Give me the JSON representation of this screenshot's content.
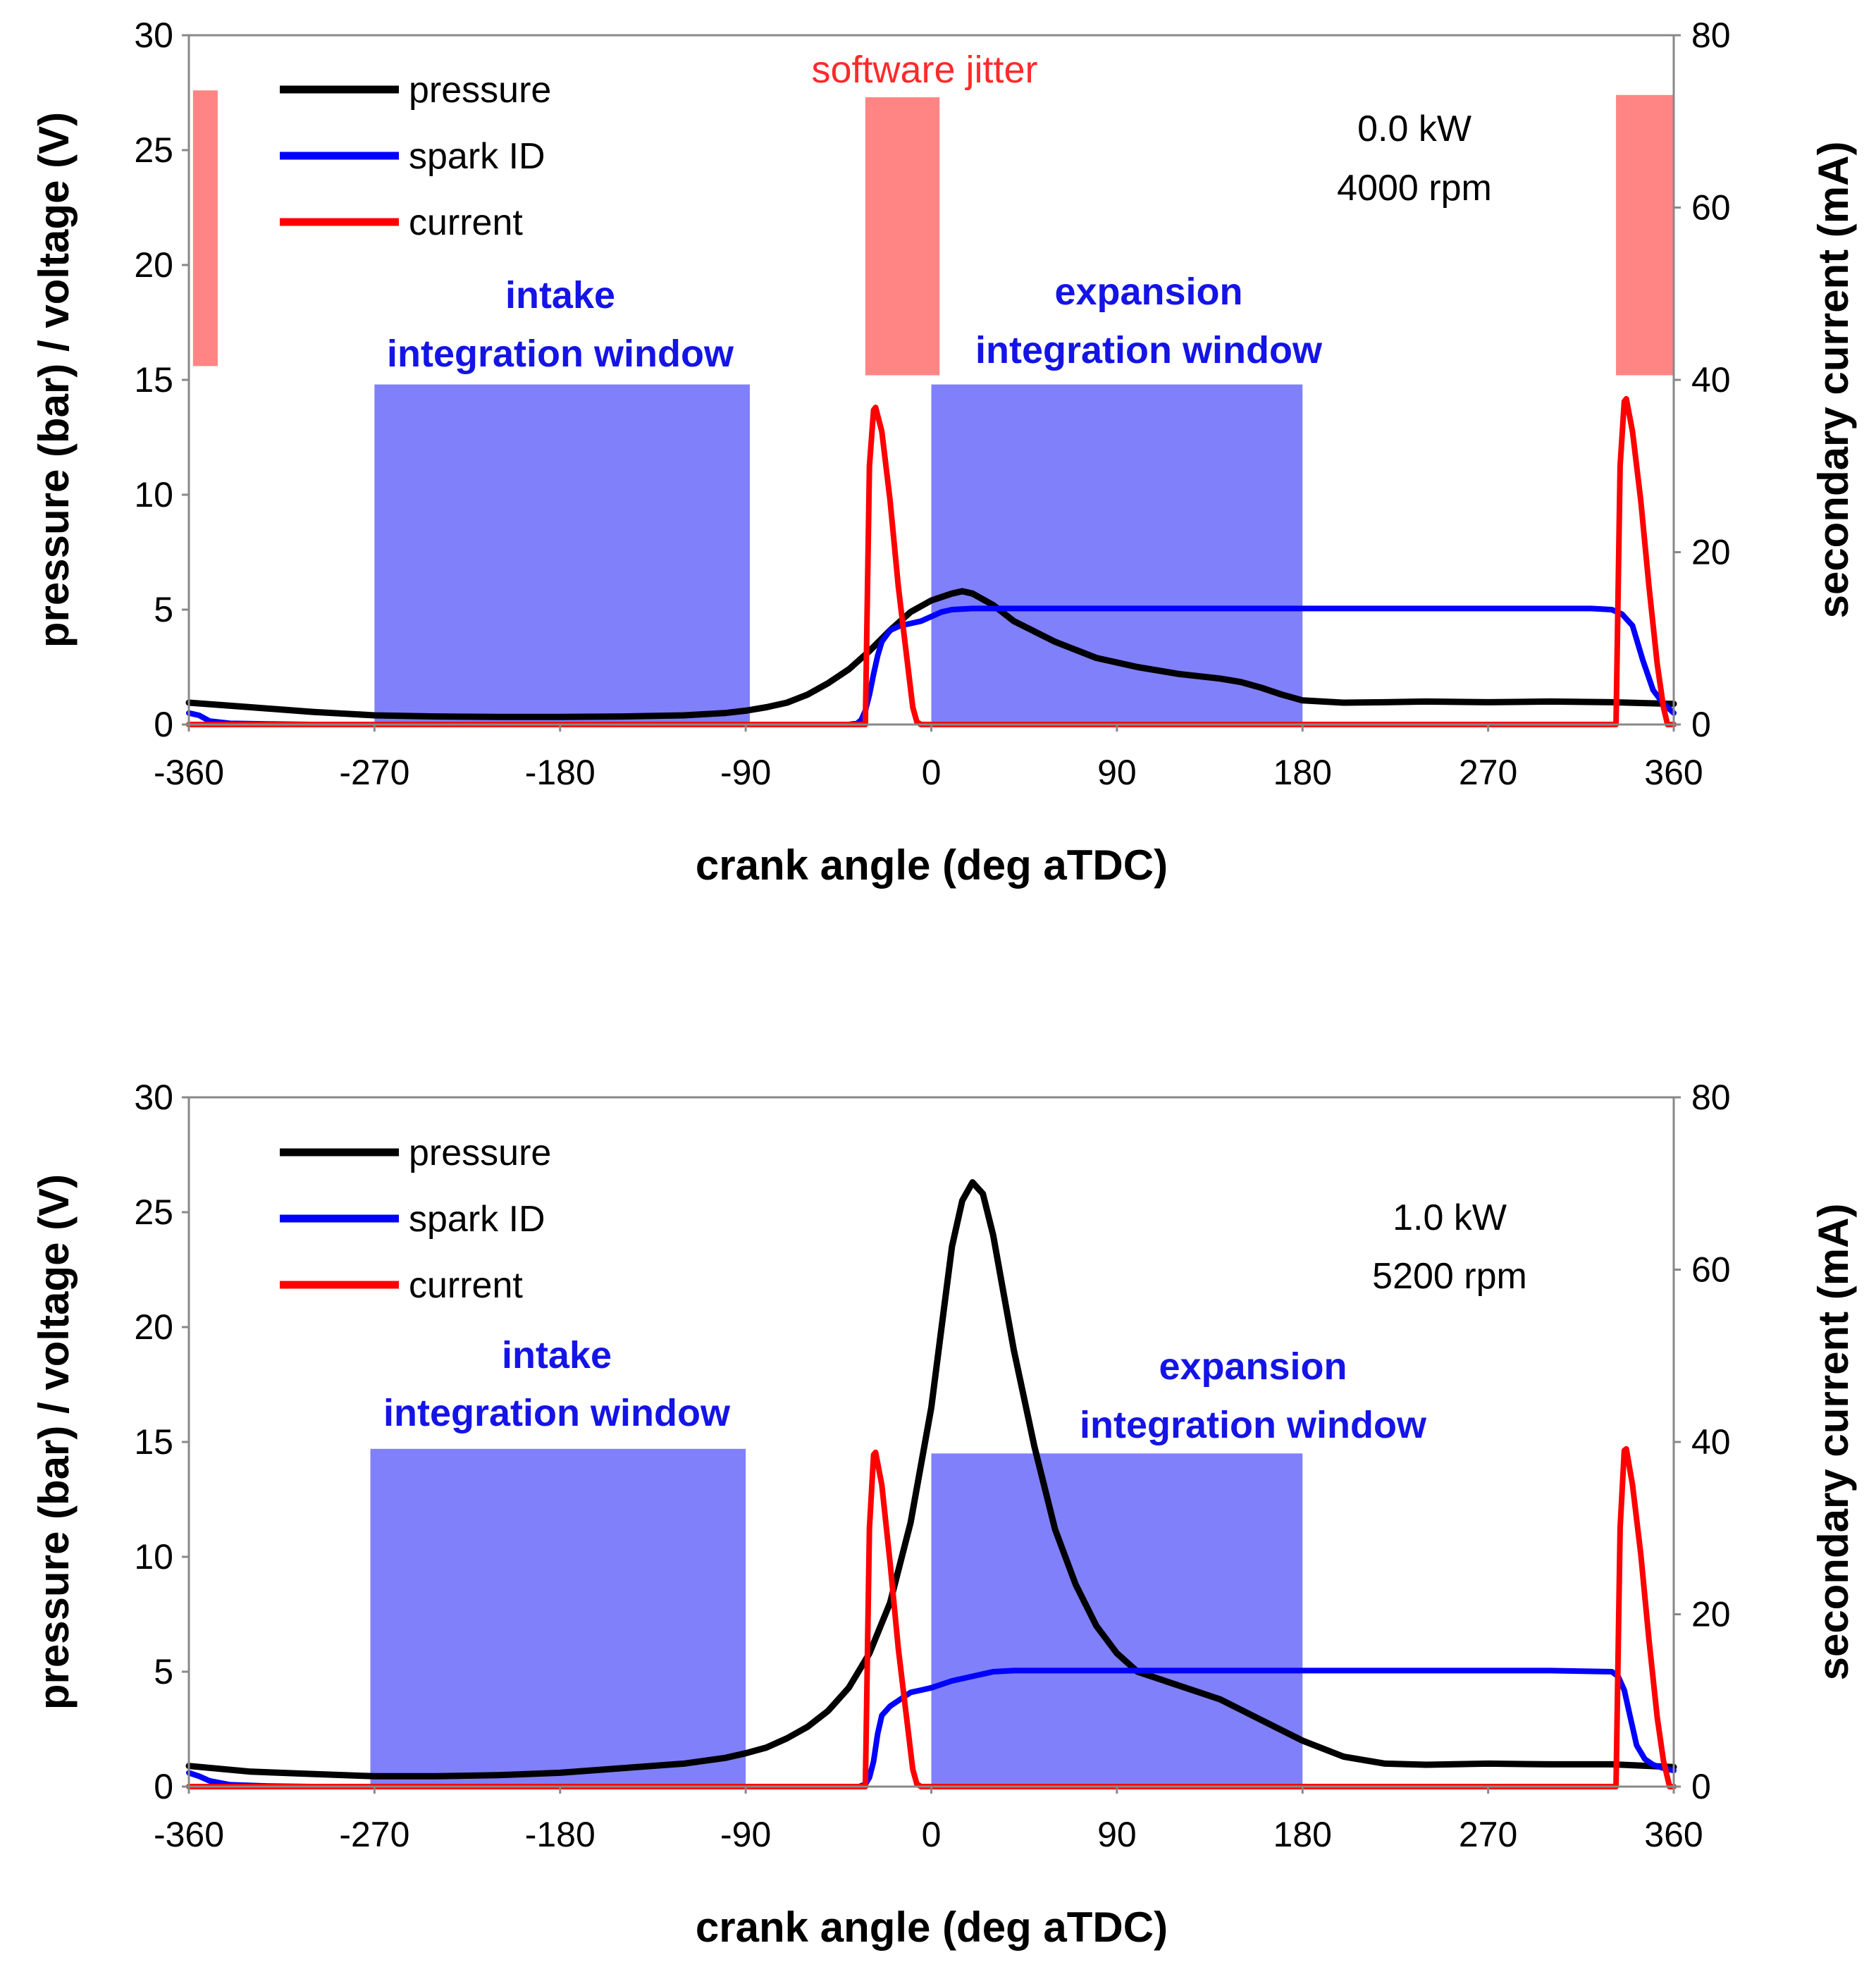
{
  "chart_data": [
    {
      "type": "line",
      "panel": "top",
      "xlabel": "crank angle (deg aTDC)",
      "ylabel": "pressure (bar) / voltage (V)",
      "y2label": "secondary current (mA)",
      "xlim": [
        -360,
        360
      ],
      "ylim": [
        0,
        30
      ],
      "y2lim": [
        0,
        80
      ],
      "xticks": [
        "-360",
        "-270",
        "-180",
        "-90",
        "0",
        "90",
        "180",
        "270",
        "360"
      ],
      "yticks": [
        "0",
        "5",
        "10",
        "15",
        "20",
        "25",
        "30"
      ],
      "y2ticks": [
        "0",
        "20",
        "40",
        "60",
        "80"
      ],
      "legend": [
        "pressure",
        "spark ID",
        "current"
      ],
      "legend_position": "top-left",
      "info": [
        "0.0 kW",
        "4000 rpm"
      ],
      "windows": [
        {
          "label1": "intake",
          "label2": "integration window",
          "x0": -270,
          "x1": -88,
          "y0": 0,
          "y1": 14.8
        },
        {
          "label1": "expansion",
          "label2": "integration window",
          "x0": 0,
          "x1": 180,
          "y0": 0,
          "y1": 14.8
        }
      ],
      "jitter_label": "software jitter",
      "jitter_zones": [
        {
          "x0": -358,
          "x1": -346,
          "y0": 15.6,
          "y1": 27.6
        },
        {
          "x0": -32,
          "x1": 4,
          "y0": 15.2,
          "y1": 27.3
        },
        {
          "x0": 332,
          "x1": 360,
          "y0": 15.2,
          "y1": 27.4
        }
      ],
      "series": [
        {
          "name": "pressure",
          "color": "#000000",
          "axis": "left",
          "x": [
            -360,
            -330,
            -300,
            -270,
            -240,
            -210,
            -180,
            -150,
            -120,
            -100,
            -90,
            -80,
            -70,
            -60,
            -50,
            -40,
            -30,
            -20,
            -10,
            0,
            10,
            15,
            20,
            30,
            40,
            60,
            80,
            100,
            120,
            140,
            150,
            160,
            170,
            180,
            200,
            220,
            240,
            270,
            300,
            330,
            360
          ],
          "y": [
            0.95,
            0.75,
            0.55,
            0.4,
            0.35,
            0.33,
            0.33,
            0.35,
            0.4,
            0.5,
            0.6,
            0.75,
            0.95,
            1.3,
            1.8,
            2.4,
            3.2,
            4.1,
            4.9,
            5.4,
            5.7,
            5.8,
            5.7,
            5.2,
            4.5,
            3.6,
            2.9,
            2.5,
            2.2,
            2.0,
            1.85,
            1.6,
            1.3,
            1.05,
            0.95,
            0.97,
            1.0,
            0.97,
            1.0,
            0.97,
            0.9
          ]
        },
        {
          "name": "spark ID",
          "color": "#0000ff",
          "axis": "left",
          "x": [
            -360,
            -355,
            -350,
            -340,
            -320,
            -300,
            -250,
            -100,
            -40,
            -36,
            -34,
            -32,
            -30,
            -28,
            -26,
            -24,
            -20,
            -15,
            -10,
            -5,
            0,
            5,
            10,
            20,
            30,
            60,
            100,
            150,
            200,
            250,
            300,
            320,
            330,
            335,
            340,
            345,
            350,
            355,
            360
          ],
          "y": [
            0.5,
            0.4,
            0.15,
            0.05,
            0.02,
            0.0,
            0.0,
            0.0,
            0.0,
            0.05,
            0.2,
            0.6,
            1.3,
            2.2,
            3.0,
            3.6,
            4.1,
            4.3,
            4.4,
            4.5,
            4.7,
            4.9,
            5.0,
            5.05,
            5.05,
            5.05,
            5.05,
            5.05,
            5.05,
            5.05,
            5.05,
            5.05,
            5.0,
            4.8,
            4.3,
            2.8,
            1.5,
            0.9,
            0.5
          ]
        },
        {
          "name": "current",
          "color": "#ff0000",
          "axis": "right",
          "x": [
            -360,
            -340,
            -300,
            -200,
            -100,
            -35,
            -32,
            -30,
            -28,
            -27,
            -24,
            -20,
            -16,
            -12,
            -9,
            -7,
            -5,
            0,
            100,
            200,
            300,
            320,
            330,
            332,
            334,
            336,
            337,
            340,
            344,
            348,
            352,
            355,
            357,
            360
          ],
          "y": [
            0,
            0,
            0,
            0,
            0,
            0,
            0,
            30,
            36.5,
            36.8,
            34,
            26,
            16,
            8,
            2,
            0.3,
            0,
            0,
            0,
            0,
            0,
            0,
            0,
            0,
            30,
            37.5,
            37.8,
            34,
            26,
            16,
            7,
            2,
            0,
            0
          ]
        }
      ]
    },
    {
      "type": "line",
      "panel": "bottom",
      "xlabel": "crank angle (deg aTDC)",
      "ylabel": "pressure (bar) / voltage (V)",
      "y2label": "secondary current (mA)",
      "xlim": [
        -360,
        360
      ],
      "ylim": [
        0,
        30
      ],
      "y2lim": [
        0,
        80
      ],
      "xticks": [
        "-360",
        "-270",
        "-180",
        "-90",
        "0",
        "90",
        "180",
        "270",
        "360"
      ],
      "yticks": [
        "0",
        "5",
        "10",
        "15",
        "20",
        "25",
        "30"
      ],
      "y2ticks": [
        "0",
        "20",
        "40",
        "60",
        "80"
      ],
      "legend": [
        "pressure",
        "spark ID",
        "current"
      ],
      "legend_position": "top-left",
      "info": [
        "1.0 kW",
        "5200 rpm"
      ],
      "windows": [
        {
          "label1": "intake",
          "label2": "integration window",
          "x0": -272,
          "x1": -90,
          "y0": 0,
          "y1": 14.7
        },
        {
          "label1": "expansion",
          "label2": "integration window",
          "x0": 0,
          "x1": 180,
          "y0": 0,
          "y1": 14.5
        }
      ],
      "series": [
        {
          "name": "pressure",
          "color": "#000000",
          "axis": "left",
          "x": [
            -360,
            -330,
            -300,
            -270,
            -240,
            -210,
            -180,
            -150,
            -120,
            -100,
            -90,
            -80,
            -70,
            -60,
            -50,
            -40,
            -30,
            -20,
            -10,
            0,
            5,
            10,
            15,
            20,
            25,
            30,
            35,
            40,
            50,
            60,
            70,
            80,
            90,
            100,
            120,
            140,
            160,
            180,
            200,
            220,
            240,
            270,
            300,
            330,
            360
          ],
          "y": [
            0.9,
            0.65,
            0.55,
            0.45,
            0.45,
            0.5,
            0.6,
            0.8,
            1.0,
            1.25,
            1.45,
            1.7,
            2.1,
            2.6,
            3.3,
            4.3,
            5.8,
            8.0,
            11.5,
            16.5,
            20.0,
            23.5,
            25.5,
            26.3,
            25.8,
            24.0,
            21.5,
            19.0,
            14.8,
            11.2,
            8.8,
            7.0,
            5.8,
            5.0,
            4.4,
            3.8,
            2.9,
            2.0,
            1.3,
            1.0,
            0.95,
            1.0,
            0.97,
            0.97,
            0.85
          ]
        },
        {
          "name": "spark ID",
          "color": "#0000ff",
          "axis": "left",
          "x": [
            -360,
            -355,
            -350,
            -340,
            -320,
            -300,
            -200,
            -100,
            -35,
            -32,
            -30,
            -28,
            -26,
            -24,
            -20,
            -15,
            -10,
            -5,
            0,
            10,
            20,
            30,
            40,
            100,
            200,
            300,
            330,
            333,
            336,
            339,
            342,
            346,
            350,
            355,
            360
          ],
          "y": [
            0.6,
            0.45,
            0.25,
            0.08,
            0.02,
            0.0,
            0.0,
            0.0,
            0.0,
            0.1,
            0.4,
            1.1,
            2.3,
            3.1,
            3.5,
            3.8,
            4.1,
            4.2,
            4.3,
            4.6,
            4.8,
            5.0,
            5.05,
            5.05,
            5.05,
            5.05,
            5.0,
            4.8,
            4.2,
            3.0,
            1.8,
            1.2,
            0.95,
            0.8,
            0.7
          ]
        },
        {
          "name": "current",
          "color": "#ff0000",
          "axis": "right",
          "x": [
            -360,
            -300,
            -200,
            -100,
            -40,
            -32,
            -30,
            -28,
            -27,
            -24,
            -20,
            -16,
            -12,
            -9,
            -7,
            -5,
            0,
            100,
            200,
            300,
            325,
            330,
            332,
            334,
            336,
            337,
            340,
            344,
            348,
            352,
            355,
            358,
            360
          ],
          "y": [
            0,
            0,
            0,
            0,
            0,
            0,
            30,
            38.5,
            38.8,
            35,
            26,
            16,
            8,
            2,
            0.3,
            0,
            0,
            0,
            0,
            0,
            0,
            0,
            0,
            30,
            39,
            39.2,
            35,
            27,
            17,
            8,
            3,
            0,
            0
          ]
        }
      ]
    }
  ]
}
